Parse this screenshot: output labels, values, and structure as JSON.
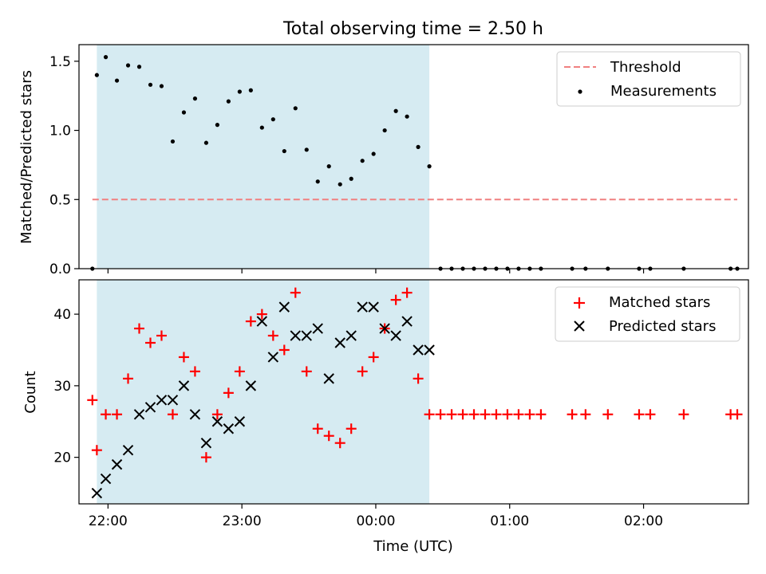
{
  "figure_title": "Total observing time = 2.50 h",
  "chart_data": [
    {
      "type": "scatter",
      "panel": "top",
      "title": "Total observing time = 2.50 h",
      "ylabel": "Matched/Predicted stars",
      "xlabel": "",
      "xlim": [
        "21:47",
        "02:47"
      ],
      "ylim": [
        0,
        1.62
      ],
      "yticks": [
        0.0,
        0.5,
        1.0,
        1.5
      ],
      "ytick_labels": [
        "0.0",
        "0.5",
        "1.0",
        "1.5"
      ],
      "observing_window": {
        "start": "21:55",
        "end": "00:24",
        "color": "#add8e6"
      },
      "legend_position": "top-right",
      "threshold": {
        "name": "Threshold",
        "value": 0.5,
        "x_start": "21:53",
        "x_end": "02:42",
        "color": "#f08080",
        "style": "dashed"
      },
      "series": [
        {
          "name": "Measurements",
          "marker": "dot",
          "color": "#000000",
          "points": [
            [
              "21:53",
              0.0
            ],
            [
              "21:55",
              1.4
            ],
            [
              "21:59",
              1.53
            ],
            [
              "22:04",
              1.36
            ],
            [
              "22:09",
              1.47
            ],
            [
              "22:14",
              1.46
            ],
            [
              "22:19",
              1.33
            ],
            [
              "22:24",
              1.32
            ],
            [
              "22:29",
              0.92
            ],
            [
              "22:34",
              1.13
            ],
            [
              "22:39",
              1.23
            ],
            [
              "22:44",
              0.91
            ],
            [
              "22:49",
              1.04
            ],
            [
              "22:54",
              1.21
            ],
            [
              "22:59",
              1.28
            ],
            [
              "23:04",
              1.29
            ],
            [
              "23:09",
              1.02
            ],
            [
              "23:14",
              1.08
            ],
            [
              "23:19",
              0.85
            ],
            [
              "23:24",
              1.16
            ],
            [
              "23:29",
              0.86
            ],
            [
              "23:34",
              0.63
            ],
            [
              "23:39",
              0.74
            ],
            [
              "23:44",
              0.61
            ],
            [
              "23:49",
              0.65
            ],
            [
              "23:54",
              0.78
            ],
            [
              "23:59",
              0.83
            ],
            [
              "00:04",
              1.0
            ],
            [
              "00:09",
              1.14
            ],
            [
              "00:14",
              1.1
            ],
            [
              "00:19",
              0.88
            ],
            [
              "00:24",
              0.74
            ],
            [
              "00:29",
              0.0
            ],
            [
              "00:34",
              0.0
            ],
            [
              "00:39",
              0.0
            ],
            [
              "00:44",
              0.0
            ],
            [
              "00:49",
              0.0
            ],
            [
              "00:54",
              0.0
            ],
            [
              "00:59",
              0.0
            ],
            [
              "01:04",
              0.0
            ],
            [
              "01:09",
              0.0
            ],
            [
              "01:14",
              0.0
            ],
            [
              "01:28",
              0.0
            ],
            [
              "01:34",
              0.0
            ],
            [
              "01:44",
              0.0
            ],
            [
              "01:58",
              0.0
            ],
            [
              "02:03",
              0.0
            ],
            [
              "02:18",
              0.0
            ],
            [
              "02:39",
              0.0
            ],
            [
              "02:42",
              0.0
            ]
          ]
        }
      ]
    },
    {
      "type": "scatter",
      "panel": "bottom",
      "ylabel": "Count",
      "xlabel": "Time (UTC)",
      "xlim": [
        "21:47",
        "02:47"
      ],
      "ylim": [
        13.5,
        44.8
      ],
      "xticks": [
        "22:00",
        "23:00",
        "00:00",
        "01:00",
        "02:00"
      ],
      "yticks": [
        20,
        30,
        40
      ],
      "ytick_labels": [
        "20",
        "30",
        "40"
      ],
      "observing_window": {
        "start": "21:55",
        "end": "00:24",
        "color": "#add8e6"
      },
      "legend_position": "top-right",
      "series": [
        {
          "name": "Matched stars",
          "marker": "+",
          "color": "#ff0000",
          "points": [
            [
              "21:53",
              28
            ],
            [
              "21:55",
              21
            ],
            [
              "21:59",
              26
            ],
            [
              "22:04",
              26
            ],
            [
              "22:09",
              31
            ],
            [
              "22:14",
              38
            ],
            [
              "22:19",
              36
            ],
            [
              "22:24",
              37
            ],
            [
              "22:29",
              26
            ],
            [
              "22:34",
              34
            ],
            [
              "22:39",
              32
            ],
            [
              "22:44",
              20
            ],
            [
              "22:49",
              26
            ],
            [
              "22:54",
              29
            ],
            [
              "22:59",
              32
            ],
            [
              "23:04",
              39
            ],
            [
              "23:09",
              40
            ],
            [
              "23:14",
              37
            ],
            [
              "23:19",
              35
            ],
            [
              "23:24",
              43
            ],
            [
              "23:29",
              32
            ],
            [
              "23:34",
              24
            ],
            [
              "23:39",
              23
            ],
            [
              "23:44",
              22
            ],
            [
              "23:49",
              24
            ],
            [
              "23:54",
              32
            ],
            [
              "23:59",
              34
            ],
            [
              "00:04",
              38
            ],
            [
              "00:09",
              42
            ],
            [
              "00:14",
              43
            ],
            [
              "00:19",
              31
            ],
            [
              "00:24",
              26
            ],
            [
              "00:29",
              26
            ],
            [
              "00:34",
              26
            ],
            [
              "00:39",
              26
            ],
            [
              "00:44",
              26
            ],
            [
              "00:49",
              26
            ],
            [
              "00:54",
              26
            ],
            [
              "00:59",
              26
            ],
            [
              "01:04",
              26
            ],
            [
              "01:09",
              26
            ],
            [
              "01:14",
              26
            ],
            [
              "01:28",
              26
            ],
            [
              "01:34",
              26
            ],
            [
              "01:44",
              26
            ],
            [
              "01:58",
              26
            ],
            [
              "02:03",
              26
            ],
            [
              "02:18",
              26
            ],
            [
              "02:39",
              26
            ],
            [
              "02:42",
              26
            ]
          ]
        },
        {
          "name": "Predicted stars",
          "marker": "x",
          "color": "#000000",
          "points": [
            [
              "21:55",
              15
            ],
            [
              "21:59",
              17
            ],
            [
              "22:04",
              19
            ],
            [
              "22:09",
              21
            ],
            [
              "22:14",
              26
            ],
            [
              "22:19",
              27
            ],
            [
              "22:24",
              28
            ],
            [
              "22:29",
              28
            ],
            [
              "22:34",
              30
            ],
            [
              "22:39",
              26
            ],
            [
              "22:44",
              22
            ],
            [
              "22:49",
              25
            ],
            [
              "22:54",
              24
            ],
            [
              "22:59",
              25
            ],
            [
              "23:04",
              30
            ],
            [
              "23:09",
              39
            ],
            [
              "23:14",
              34
            ],
            [
              "23:19",
              41
            ],
            [
              "23:24",
              37
            ],
            [
              "23:29",
              37
            ],
            [
              "23:34",
              38
            ],
            [
              "23:39",
              31
            ],
            [
              "23:44",
              36
            ],
            [
              "23:49",
              37
            ],
            [
              "23:54",
              41
            ],
            [
              "23:59",
              41
            ],
            [
              "00:04",
              38
            ],
            [
              "00:09",
              37
            ],
            [
              "00:14",
              39
            ],
            [
              "00:19",
              35
            ],
            [
              "00:24",
              35
            ]
          ]
        }
      ]
    }
  ]
}
